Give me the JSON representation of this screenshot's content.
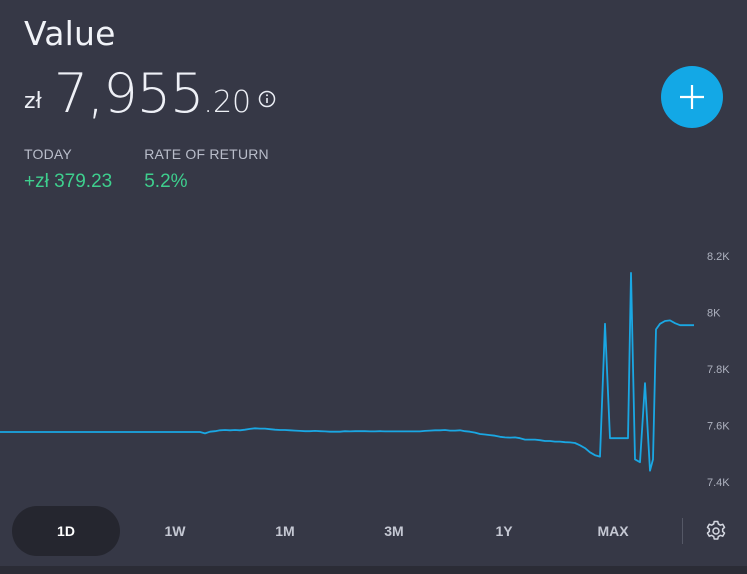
{
  "header": {
    "title": "Value",
    "currency": "zł",
    "value_main": "7,955",
    "value_decimals": ".20"
  },
  "stats": {
    "today_label": "TODAY",
    "today_value": "+zł 379.23",
    "return_label": "RATE OF RETURN",
    "return_value": "5.2%"
  },
  "icons": {
    "info": "info-icon",
    "add": "plus-icon",
    "settings": "gear-icon"
  },
  "colors": {
    "background": "#363846",
    "accent": "#13a8e6",
    "positive": "#3ecf8e",
    "line": "#1aa7e3"
  },
  "ranges": [
    "1D",
    "1W",
    "1M",
    "3M",
    "1Y",
    "MAX"
  ],
  "active_range": "1D",
  "chart_data": {
    "type": "line",
    "title": "",
    "xlabel": "",
    "ylabel": "",
    "ylim": [
      7350,
      8250
    ],
    "yticks": [
      "8.2K",
      "8K",
      "7.8K",
      "7.6K",
      "7.4K"
    ],
    "ytick_values": [
      8200,
      8000,
      7800,
      7600,
      7400
    ],
    "x": [
      0,
      10,
      20,
      30,
      40,
      50,
      60,
      70,
      80,
      90,
      100,
      110,
      120,
      130,
      140,
      150,
      160,
      170,
      180,
      190,
      196,
      200,
      205,
      210,
      215,
      220,
      225,
      230,
      235,
      240,
      245,
      250,
      255,
      260,
      265,
      270,
      275,
      280,
      285,
      290,
      295,
      300,
      305,
      310,
      315,
      320,
      325,
      330,
      335,
      340,
      345,
      350,
      355,
      360,
      365,
      370,
      375,
      380,
      385,
      390,
      395,
      400,
      405,
      410,
      415,
      420,
      425,
      430,
      435,
      440,
      445,
      450,
      455,
      460,
      465,
      470,
      475,
      480,
      485,
      490,
      495,
      500,
      505,
      510,
      515,
      520,
      525,
      530,
      535,
      540,
      545,
      550,
      555,
      560,
      565,
      570,
      575,
      580,
      585,
      590,
      595,
      600,
      605,
      610,
      615,
      620,
      625,
      628,
      631,
      635,
      640,
      645,
      650,
      653,
      656,
      660,
      665,
      670,
      675,
      680,
      685,
      690,
      694
    ],
    "values": [
      7577,
      7577,
      7577,
      7577,
      7577,
      7577,
      7577,
      7577,
      7577,
      7577,
      7577,
      7577,
      7577,
      7577,
      7577,
      7577,
      7577,
      7577,
      7577,
      7577,
      7577,
      7577,
      7572,
      7578,
      7580,
      7583,
      7584,
      7583,
      7584,
      7583,
      7585,
      7588,
      7590,
      7589,
      7589,
      7587,
      7585,
      7584,
      7584,
      7583,
      7582,
      7581,
      7580,
      7580,
      7581,
      7580,
      7579,
      7578,
      7578,
      7578,
      7580,
      7579,
      7580,
      7580,
      7580,
      7579,
      7579,
      7580,
      7579,
      7579,
      7579,
      7579,
      7579,
      7579,
      7579,
      7579,
      7581,
      7582,
      7583,
      7583,
      7584,
      7582,
      7582,
      7583,
      7580,
      7578,
      7575,
      7570,
      7568,
      7566,
      7564,
      7560,
      7558,
      7557,
      7558,
      7555,
      7550,
      7550,
      7550,
      7548,
      7545,
      7545,
      7543,
      7543,
      7541,
      7540,
      7538,
      7530,
      7520,
      7505,
      7495,
      7490,
      7960,
      7555,
      7555,
      7555,
      7555,
      7555,
      8140,
      7480,
      7470,
      7750,
      7440,
      7480,
      7940,
      7960,
      7970,
      7972,
      7962,
      7955,
      7955,
      7955,
      7955
    ]
  }
}
